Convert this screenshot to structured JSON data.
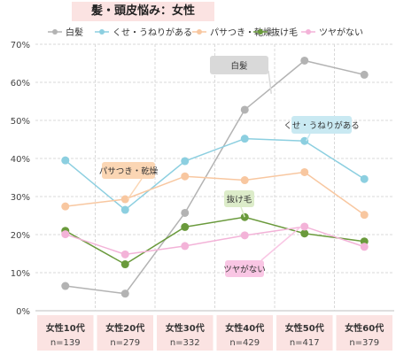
{
  "chart_data": {
    "type": "line",
    "title": "髪・頭皮悩み：女性",
    "categories": [
      "女性10代",
      "女性20代",
      "女性30代",
      "女性40代",
      "女性50代",
      "女性60代"
    ],
    "sample_sizes": [
      "n=139",
      "n=279",
      "n=332",
      "n=429",
      "n=417",
      "n=379"
    ],
    "y_ticks": [
      "0%",
      "10%",
      "20%",
      "30%",
      "40%",
      "50%",
      "60%",
      "70%"
    ],
    "ylim": [
      0,
      70
    ],
    "y_unit": "%",
    "grid": true,
    "legend_position": "top",
    "series": [
      {
        "name": "白髪",
        "color": "#b3b3b3",
        "label_color": "#d9d9d9",
        "values": [
          6.5,
          4.5,
          25.7,
          52.8,
          65.7,
          62.0
        ],
        "callout": "白髪"
      },
      {
        "name": "くせ・うねりがある",
        "color": "#8ccfe0",
        "label_color": "#c9e9f2",
        "values": [
          39.5,
          26.5,
          39.3,
          45.2,
          44.6,
          34.6
        ],
        "callout": "くせ・うねりがある"
      },
      {
        "name": "パサつき・乾燥",
        "color": "#f8c7a0",
        "label_color": "#fbd6b4",
        "values": [
          27.4,
          29.3,
          35.3,
          34.3,
          36.4,
          25.2
        ],
        "callout": "パサつき・乾燥"
      },
      {
        "name": "抜け毛",
        "color": "#6a9a3c",
        "label_color": "#dcecc9",
        "values": [
          21.0,
          12.2,
          22.0,
          24.6,
          20.3,
          18.2
        ],
        "callout": "抜け毛"
      },
      {
        "name": "ツヤがない",
        "color": "#f3b3d8",
        "label_color": "#f9c6e4",
        "values": [
          20.1,
          14.8,
          17.0,
          19.8,
          22.1,
          16.8
        ],
        "callout": "ツヤがない"
      }
    ]
  }
}
